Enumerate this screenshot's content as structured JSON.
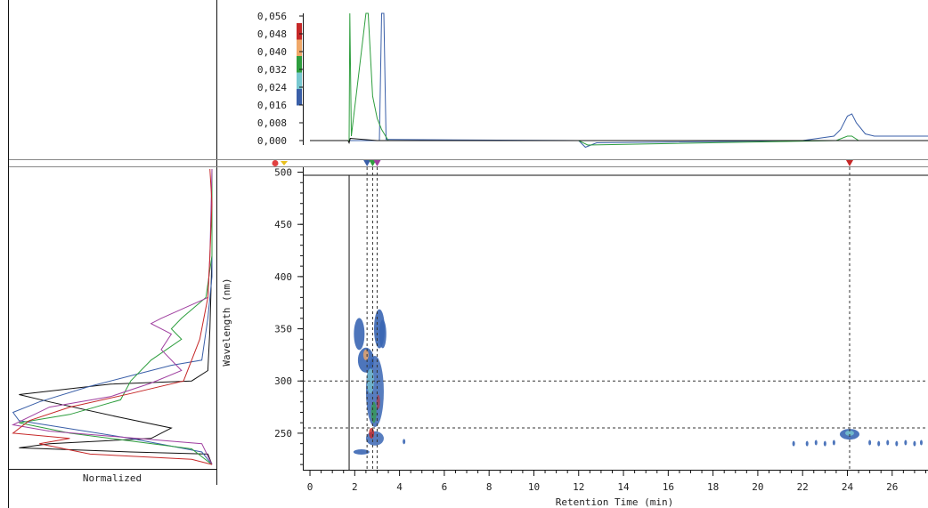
{
  "colors": {
    "red": "#c62828",
    "orange": "#f0a868",
    "green": "#2e9e3e",
    "teal": "#78c8d0",
    "blue": "#3a5fa8",
    "purple": "#a040a0",
    "black": "#111111",
    "contour_main": "#3a66b4"
  },
  "spectrum_panel": {
    "label": "Normalized",
    "series_colors": [
      "black",
      "blue",
      "green",
      "purple",
      "red"
    ]
  },
  "chart_data": [
    {
      "type": "line",
      "xlim": [
        0,
        27.6
      ],
      "ylim": [
        -0.004,
        0.058
      ],
      "y_tick_labels": [
        "0,000",
        "0,008",
        "0,016",
        "0,024",
        "0,032",
        "0,040",
        "0,048",
        "0,056"
      ],
      "y_tick_values": [
        0.0,
        0.008,
        0.016,
        0.024,
        0.032,
        0.04,
        0.048,
        0.056
      ],
      "legend_swatches": [
        "red",
        "orange",
        "green",
        "teal",
        "blue"
      ],
      "series": [
        {
          "color": "blue",
          "x": [
            0,
            1.75,
            1.8,
            3.1,
            3.2,
            3.3,
            3.4,
            3.6,
            12.0,
            12.3,
            12.8,
            22.0,
            23.4,
            23.7,
            24.0,
            24.2,
            24.4,
            24.8,
            25.2,
            27.6
          ],
          "y": [
            0.0,
            0.0,
            0.0,
            0.0,
            0.06,
            0.06,
            0.0005,
            0.0005,
            0.0,
            -0.003,
            -0.001,
            0.0,
            0.002,
            0.005,
            0.011,
            0.012,
            0.008,
            0.003,
            0.002,
            0.002
          ]
        },
        {
          "color": "green",
          "x": [
            0,
            1.75,
            1.78,
            1.85,
            2.5,
            2.6,
            2.8,
            3.0,
            3.2,
            3.5,
            12.0,
            12.4,
            23.5,
            24.0,
            24.2,
            24.5,
            27.6
          ],
          "y": [
            0.0,
            0.0,
            0.06,
            0.002,
            0.06,
            0.06,
            0.02,
            0.01,
            0.005,
            0.0,
            0.0,
            -0.002,
            0.0,
            0.002,
            0.002,
            0.0,
            0.0
          ]
        },
        {
          "color": "black",
          "x": [
            0,
            1.7,
            1.75,
            1.8,
            3.0,
            27.6
          ],
          "y": [
            0.0,
            0.0,
            -0.001,
            0.001,
            0.0,
            0.0
          ]
        }
      ]
    },
    {
      "type": "heatmap",
      "xlabel": "Retention Time (min)",
      "ylabel": "Wavelength (nm)",
      "xlim": [
        -0.2,
        27.6
      ],
      "ylim": [
        215,
        503
      ],
      "x_ticks": [
        0,
        2,
        4,
        6,
        8,
        10,
        12,
        14,
        16,
        18,
        20,
        22,
        24,
        26
      ],
      "y_ticks": [
        250,
        300,
        350,
        400,
        450,
        500
      ],
      "markers": [
        {
          "time": 2.55,
          "color": "blue"
        },
        {
          "time": 2.8,
          "color": "green"
        },
        {
          "time": 3.0,
          "color": "purple"
        },
        {
          "time": 24.1,
          "color": "red"
        }
      ],
      "reference_lines": {
        "horizontal_nm": [
          300,
          255
        ],
        "top_line_nm": 497,
        "solid_vertical_min": 1.75
      }
    }
  ]
}
